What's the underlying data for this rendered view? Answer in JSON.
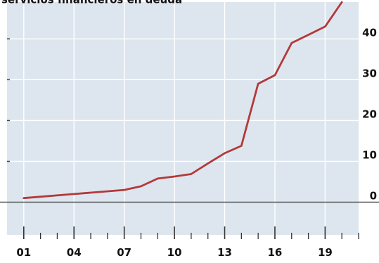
{
  "chart_data": {
    "type": "line",
    "title": "servicios financieros en deuda",
    "x_tick_labels": [
      "01",
      "04",
      "07",
      "10",
      "13",
      "16",
      "19"
    ],
    "x_tick_values": [
      2001,
      2004,
      2007,
      2010,
      2013,
      2016,
      2019
    ],
    "y_tick_labels": [
      "0",
      "10",
      "20",
      "30",
      "40"
    ],
    "y_tick_values": [
      0,
      10,
      20,
      30,
      40
    ],
    "xlim": [
      2000,
      2021
    ],
    "ylim": [
      -8,
      49
    ],
    "grid": true,
    "zero_line": true,
    "y_axis_side": "right",
    "colors": {
      "line": "#b3393a",
      "grid": "#ffffff",
      "background": "#dde6ee",
      "zero": "#555555"
    },
    "series": [
      {
        "x": [
          2001,
          2004,
          2007,
          2008,
          2009,
          2010,
          2011,
          2012,
          2013,
          2014,
          2015,
          2016,
          2017,
          2018,
          2019,
          2020
        ],
        "values": [
          1.0,
          2.0,
          3.0,
          3.9,
          5.8,
          6.3,
          6.9,
          9.5,
          12.0,
          13.8,
          29.0,
          31.1,
          39.0,
          41.0,
          43.0,
          49.0
        ]
      }
    ]
  }
}
